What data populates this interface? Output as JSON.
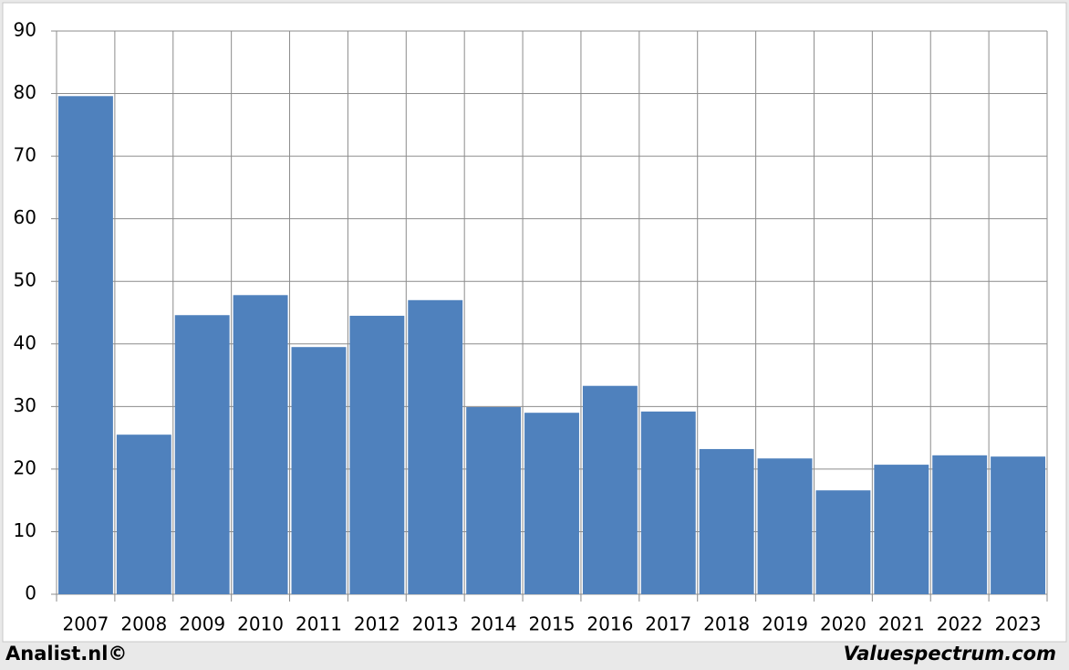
{
  "chart_data": {
    "type": "bar",
    "categories": [
      "2007",
      "2008",
      "2009",
      "2010",
      "2011",
      "2012",
      "2013",
      "2014",
      "2015",
      "2016",
      "2017",
      "2018",
      "2019",
      "2020",
      "2021",
      "2022",
      "2023"
    ],
    "values": [
      79.6,
      25.5,
      44.6,
      47.8,
      39.5,
      44.5,
      47.0,
      29.9,
      29.0,
      33.3,
      29.2,
      23.2,
      21.7,
      16.6,
      20.7,
      22.2,
      22.0
    ],
    "color": "#4f81bd",
    "ylim": [
      0,
      90
    ],
    "yticks": [
      0,
      10,
      20,
      30,
      40,
      50,
      60,
      70,
      80,
      90
    ],
    "grid": true,
    "credit_left": "Analist.nl©",
    "credit_right": "Valuespectrum.com"
  }
}
